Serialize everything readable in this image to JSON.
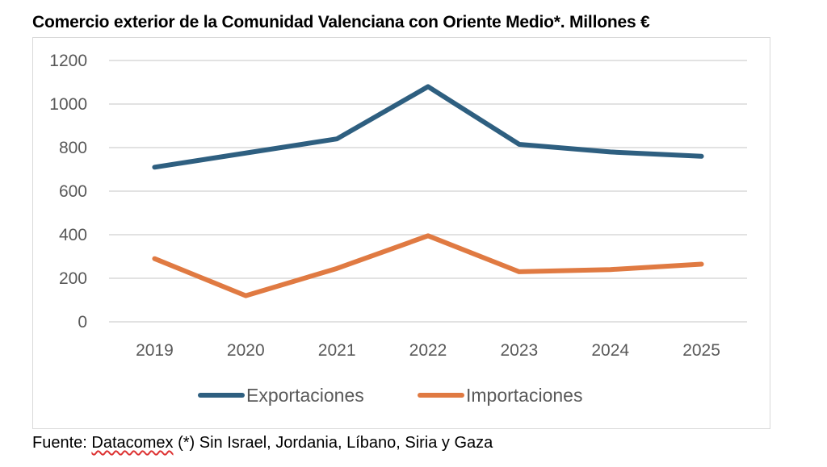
{
  "footer": {
    "prefix": "Fuente: ",
    "source_link": "Datacomex",
    "note": " (*) Sin Israel, Jordania, Líbano, Siria y Gaza"
  },
  "chart_data": {
    "type": "line",
    "title": "Comercio exterior de la Comunidad Valenciana con Oriente Medio*. Millones €",
    "xlabel": "",
    "ylabel": "",
    "categories": [
      "2019",
      "2020",
      "2021",
      "2022",
      "2023",
      "2024",
      "2025"
    ],
    "ylim": [
      0,
      1200
    ],
    "yticks": [
      0,
      200,
      400,
      600,
      800,
      1000,
      1200
    ],
    "grid": true,
    "legend_position": "bottom",
    "series": [
      {
        "name": "Exportaciones",
        "color": "#2e5f80",
        "values": [
          710,
          775,
          840,
          1080,
          815,
          780,
          760
        ]
      },
      {
        "name": "Importaciones",
        "color": "#e07a42",
        "values": [
          290,
          120,
          245,
          395,
          230,
          240,
          265
        ]
      }
    ]
  }
}
